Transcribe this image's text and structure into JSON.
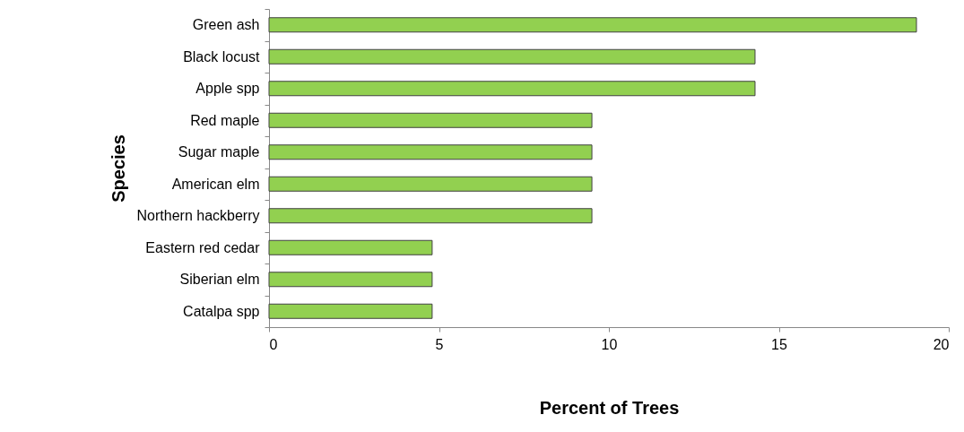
{
  "chart_data": {
    "type": "bar",
    "orientation": "horizontal",
    "xlabel": "Percent of Trees",
    "ylabel": "Species",
    "categories": [
      "Green ash",
      "Black locust",
      "Apple spp",
      "Red maple",
      "Sugar maple",
      "American elm",
      "Northern hackberry",
      "Eastern red cedar",
      "Siberian elm",
      "Catalpa spp"
    ],
    "values": [
      19.05,
      14.3,
      14.3,
      9.5,
      9.5,
      9.5,
      9.5,
      4.8,
      4.8,
      4.8
    ],
    "color": "#92d050",
    "xlim": [
      0,
      20
    ],
    "xticks": [
      0,
      5,
      10,
      15,
      20
    ],
    "grid": false
  }
}
